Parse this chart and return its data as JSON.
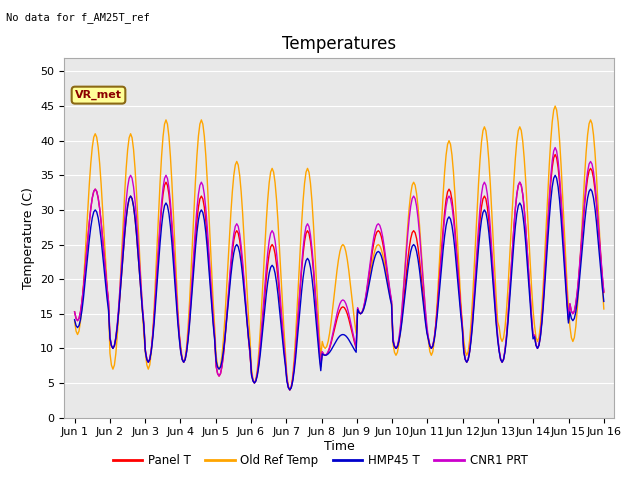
{
  "title": "Temperatures",
  "xlabel": "Time",
  "ylabel": "Temperature (C)",
  "annotation_text": "No data for f_AM25T_ref",
  "legend_box_text": "VR_met",
  "ylim": [
    0,
    52
  ],
  "yticks": [
    0,
    5,
    10,
    15,
    20,
    25,
    30,
    35,
    40,
    45,
    50
  ],
  "x_labels": [
    "Jun 1",
    "Jun 2",
    "Jun 3",
    "Jun 4",
    "Jun 5",
    "Jun 6",
    "Jun 7",
    "Jun 8",
    "Jun 9",
    "Jun 10",
    "Jun 11",
    "Jun 12",
    "Jun 13",
    "Jun 14",
    "Jun 15",
    "Jun 16"
  ],
  "colors": {
    "panel_t": "#ff0000",
    "old_ref": "#ffa500",
    "hmp45": "#0000cc",
    "cnr1": "#cc00cc"
  },
  "legend_labels": [
    "Panel T",
    "Old Ref Temp",
    "HMP45 T",
    "CNR1 PRT"
  ],
  "fig_bg_color": "#ffffff",
  "plot_bg_color": "#e8e8e8",
  "grid_color": "#ffffff",
  "title_fontsize": 12,
  "label_fontsize": 9,
  "tick_fontsize": 8,
  "day_max_panel": [
    33,
    32,
    34,
    32,
    27,
    25,
    27,
    16,
    27,
    27,
    33,
    32,
    34,
    38,
    36
  ],
  "day_min_panel": [
    14,
    10,
    8,
    8,
    6,
    5,
    4,
    9,
    15,
    10,
    10,
    8,
    8,
    10,
    15
  ],
  "day_max_orange": [
    41,
    41,
    43,
    43,
    37,
    36,
    36,
    25,
    25,
    34,
    40,
    42,
    42,
    45,
    43
  ],
  "day_min_orange": [
    12,
    7,
    7,
    8,
    7,
    5,
    4,
    10,
    15,
    9,
    9,
    9,
    11,
    11,
    11
  ],
  "day_max_blue": [
    30,
    32,
    31,
    30,
    25,
    22,
    23,
    12,
    24,
    25,
    29,
    30,
    31,
    35,
    33
  ],
  "day_min_blue": [
    13,
    10,
    8,
    8,
    7,
    5,
    4,
    9,
    15,
    10,
    10,
    8,
    8,
    10,
    14
  ],
  "day_max_purple": [
    33,
    35,
    35,
    34,
    28,
    27,
    28,
    17,
    28,
    32,
    32,
    34,
    34,
    39,
    37
  ],
  "day_min_purple": [
    14,
    10,
    8,
    8,
    6,
    5,
    4,
    9,
    15,
    10,
    10,
    8,
    8,
    10,
    15
  ]
}
